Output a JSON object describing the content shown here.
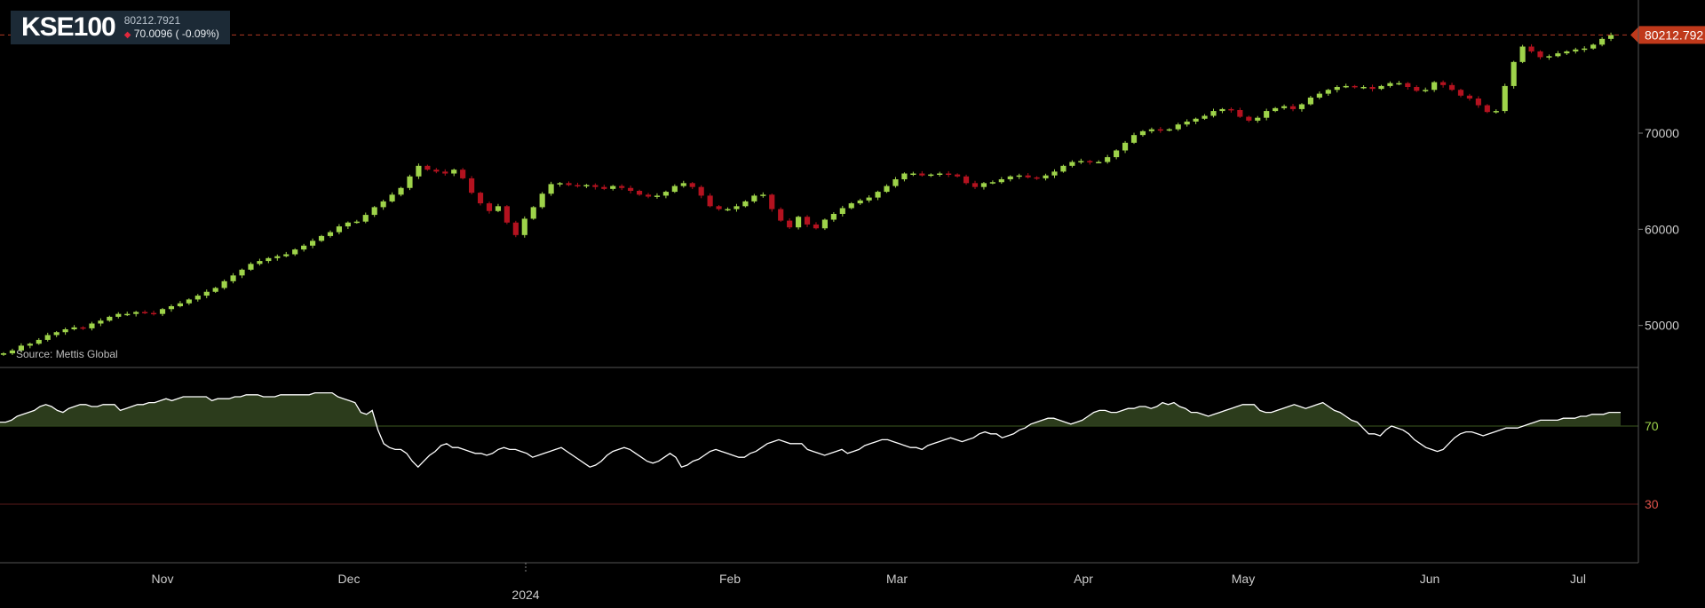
{
  "header": {
    "ticker": "KSE100",
    "last": "80212.7921",
    "change": "70.0096 ( -0.09%)",
    "change_icon": "down-triangle-icon"
  },
  "source": "Source: Mettis Global",
  "price_label": "80212.792",
  "colors": {
    "up": "#9ed34a",
    "down": "#b3121f",
    "price_label_bg": "#c0391b",
    "rsi_line": "#ffffff",
    "rsi_fill": "#31421f",
    "upper_band": "#3b5a20",
    "lower_band": "#5a1a1a"
  },
  "chart_data": [
    {
      "type": "candlestick",
      "title": "KSE100",
      "ylim": [
        46000,
        82000
      ],
      "y_ticks": [
        50000,
        60000,
        70000
      ],
      "y_tick_labels": [
        "50000",
        "60000",
        "70000"
      ],
      "x_tick_labels": [
        "Nov",
        "Dec",
        "2024",
        "Feb",
        "Mar",
        "Apr",
        "May",
        "Jun",
        "Jul"
      ],
      "last_value": 80212.792,
      "close": [
        47100,
        47400,
        47900,
        48100,
        48500,
        49000,
        49300,
        49600,
        49800,
        49700,
        50200,
        50500,
        50900,
        51200,
        51200,
        51400,
        51300,
        51200,
        51700,
        52000,
        52300,
        52700,
        53100,
        53500,
        53900,
        54600,
        55200,
        55800,
        56400,
        56700,
        57000,
        57200,
        57400,
        57900,
        58300,
        58800,
        59300,
        59700,
        60300,
        60700,
        60800,
        61500,
        62300,
        62900,
        63600,
        64300,
        65500,
        66600,
        66200,
        66000,
        65800,
        66200,
        65300,
        63800,
        62700,
        61900,
        62400,
        60700,
        59400,
        61100,
        62300,
        63700,
        64700,
        64800,
        64600,
        64500,
        64600,
        64400,
        64200,
        64500,
        64300,
        64000,
        63600,
        63400,
        63500,
        63900,
        64500,
        64800,
        64400,
        63500,
        62400,
        62100,
        62100,
        62400,
        62900,
        63500,
        63600,
        62100,
        60900,
        60200,
        61300,
        60500,
        60100,
        61000,
        61600,
        62200,
        62700,
        63000,
        63300,
        63900,
        64500,
        65200,
        65800,
        65800,
        65600,
        65700,
        65800,
        65700,
        65500,
        64800,
        64400,
        64800,
        64900,
        65200,
        65500,
        65600,
        65400,
        65300,
        65600,
        66000,
        66600,
        67000,
        67100,
        67000,
        67000,
        67500,
        68200,
        69000,
        69800,
        70200,
        70400,
        70300,
        70400,
        70900,
        71200,
        71500,
        71800,
        72300,
        72500,
        72400,
        71700,
        71300,
        71600,
        72300,
        72600,
        72800,
        72500,
        73000,
        73700,
        74100,
        74500,
        74800,
        74900,
        74800,
        74800,
        74600,
        74900,
        75200,
        75200,
        74800,
        74400,
        74500,
        75300,
        75000,
        74500,
        73900,
        73600,
        72900,
        72200,
        72300,
        74900,
        77400,
        79000,
        78500,
        77900,
        78000,
        78300,
        78500,
        78700,
        78800,
        79200,
        79800,
        80212.7921
      ]
    },
    {
      "type": "line",
      "title": "",
      "ylim": [
        0,
        100
      ],
      "y_ticks": [
        70,
        30
      ],
      "y_tick_labels": [
        "70",
        "30"
      ],
      "bands": [
        70,
        30
      ],
      "values": [
        72,
        72,
        73,
        75,
        76,
        77,
        78,
        80,
        81,
        80,
        78,
        77,
        79,
        80,
        81,
        81,
        80,
        80,
        81,
        81,
        81,
        78,
        79,
        80,
        81,
        81,
        82,
        82,
        83,
        84,
        83,
        84,
        85,
        85,
        85,
        85,
        85,
        83,
        84,
        84,
        84,
        85,
        85,
        86,
        86,
        86,
        85,
        85,
        85,
        86,
        86,
        86,
        86,
        86,
        86,
        87,
        87,
        87,
        87,
        85,
        84,
        83,
        82,
        77,
        76,
        78,
        68,
        61,
        59,
        58,
        58,
        56,
        52,
        49,
        52,
        55,
        57,
        60,
        61,
        59,
        59,
        58,
        57,
        56,
        56,
        55,
        56,
        58,
        59,
        58,
        58,
        57,
        56,
        54,
        55,
        56,
        57,
        58,
        59,
        57,
        55,
        53,
        51,
        49,
        50,
        52,
        55,
        57,
        58,
        59,
        58,
        56,
        54,
        52,
        51,
        52,
        54,
        56,
        54,
        49,
        50,
        52,
        53,
        55,
        57,
        58,
        57,
        56,
        55,
        54,
        54,
        56,
        57,
        59,
        61,
        62,
        63,
        62,
        61,
        61,
        61,
        58,
        57,
        56,
        55,
        56,
        57,
        58,
        56,
        57,
        58,
        60,
        61,
        62,
        63,
        63,
        62,
        61,
        60,
        59,
        59,
        58,
        60,
        61,
        62,
        63,
        64,
        63,
        62,
        63,
        64,
        66,
        67,
        66,
        66,
        64,
        65,
        66,
        68,
        69,
        71,
        72,
        73,
        74,
        74,
        73,
        72,
        71,
        72,
        73,
        75,
        77,
        78,
        78,
        77,
        77,
        78,
        79,
        79,
        80,
        80,
        79,
        80,
        82,
        81,
        82,
        80,
        79,
        77,
        77,
        76,
        75,
        76,
        77,
        78,
        79,
        80,
        81,
        81,
        81,
        78,
        77,
        77,
        78,
        79,
        80,
        81,
        80,
        79,
        80,
        81,
        82,
        80,
        78,
        77,
        75,
        73,
        72,
        69,
        66,
        66,
        65,
        68,
        70,
        69,
        68,
        66,
        63,
        61,
        59,
        58,
        57,
        58,
        61,
        64,
        66,
        67,
        67,
        66,
        65,
        66,
        67,
        68,
        69,
        69,
        69,
        70,
        71,
        72,
        73,
        73,
        73,
        73,
        74,
        74,
        74,
        75,
        75,
        76,
        76,
        76,
        77,
        77,
        77
      ]
    }
  ]
}
